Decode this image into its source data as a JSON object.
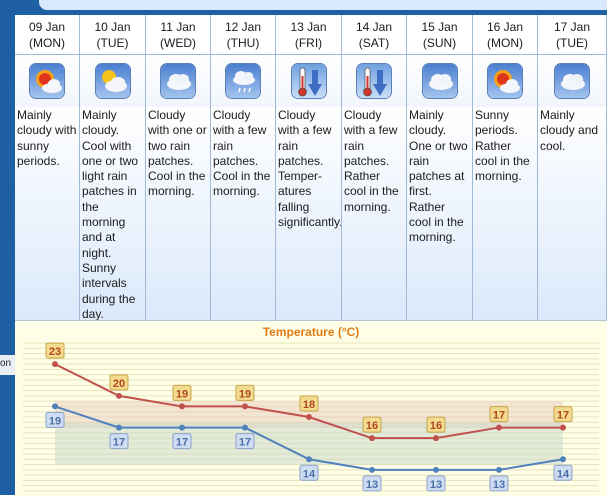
{
  "days": [
    {
      "date": "09 Jan",
      "weekday": "(MON)",
      "icon": "sunny-cloud-icon",
      "desc": "Mainly cloudy with sunny periods."
    },
    {
      "date": "10 Jan",
      "weekday": "(TUE)",
      "icon": "cloud-sun-icon",
      "desc": "Mainly cloudy. Cool with one or two light rain patches in the morning and at night. Sunny intervals during the day."
    },
    {
      "date": "11 Jan",
      "weekday": "(WED)",
      "icon": "cloud-icon",
      "desc": "Cloudy with one or two rain patches. Cool in the morning."
    },
    {
      "date": "12 Jan",
      "weekday": "(THU)",
      "icon": "rain-cloud-icon",
      "desc": "Cloudy with a few rain patches. Cool in the morning."
    },
    {
      "date": "13 Jan",
      "weekday": "(FRI)",
      "icon": "temperature-falling-icon",
      "desc": "Cloudy with a few rain patches. Temper-atures falling significantly."
    },
    {
      "date": "14 Jan",
      "weekday": "(SAT)",
      "icon": "temperature-falling-icon",
      "desc": "Cloudy with a few rain patches. Rather cool in the morning."
    },
    {
      "date": "15 Jan",
      "weekday": "(SUN)",
      "icon": "cloud-icon",
      "desc": "Mainly cloudy. One or two rain patches at first. Rather cool in the morning."
    },
    {
      "date": "16 Jan",
      "weekday": "(MON)",
      "icon": "sunny-cloud-icon",
      "desc": "Sunny periods. Rather cool in the morning."
    },
    {
      "date": "17 Jan",
      "weekday": "(TUE)",
      "icon": "cloud-icon",
      "desc": "Mainly cloudy and cool."
    }
  ],
  "left_label": "on",
  "chart_data": {
    "type": "line",
    "title": "Temperature (°C)",
    "categories": [
      "09 Jan",
      "10 Jan",
      "11 Jan",
      "12 Jan",
      "13 Jan",
      "14 Jan",
      "15 Jan",
      "16 Jan",
      "17 Jan"
    ],
    "series": [
      {
        "values": [
          23,
          20,
          19,
          19,
          18,
          16,
          16,
          17,
          17
        ],
        "color": "#c0504d",
        "label_fill": "#f3dc8f"
      },
      {
        "values": [
          19,
          17,
          17,
          17,
          14,
          13,
          13,
          13,
          14
        ],
        "color": "#4f81bd",
        "label_fill": "#cfdcf2"
      }
    ],
    "ylim": [
      11,
      25
    ],
    "grid": true
  }
}
